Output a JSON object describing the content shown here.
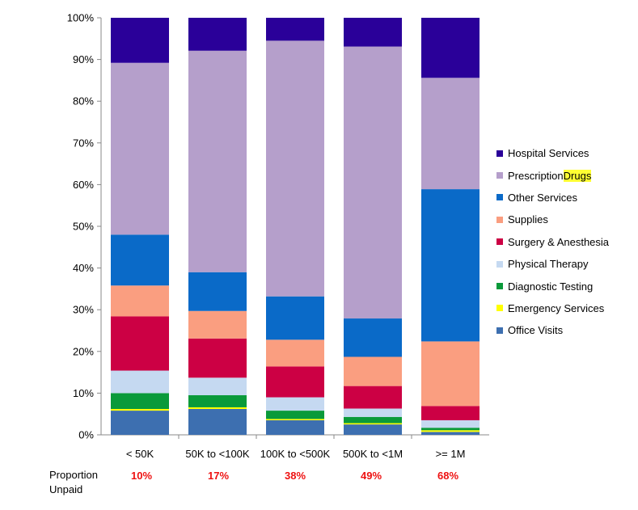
{
  "chart_data": {
    "type": "bar",
    "stacked": "percent",
    "categories": [
      "< 50K",
      "50K to <100K",
      "100K to <500K",
      "500K to <1M",
      ">= 1M"
    ],
    "ylim": [
      0,
      100
    ],
    "yticks": [
      "0%",
      "10%",
      "20%",
      "30%",
      "40%",
      "50%",
      "60%",
      "70%",
      "80%",
      "90%",
      "100%"
    ],
    "legend_position": "right",
    "series": [
      {
        "name": "Office Visits",
        "color": "#3d6fb0",
        "values": [
          5.8,
          6.2,
          3.5,
          2.5,
          0.7
        ]
      },
      {
        "name": "Emergency Services",
        "color": "#ffff00",
        "values": [
          0.4,
          0.4,
          0.3,
          0.3,
          0.4
        ]
      },
      {
        "name": "Diagnostic Testing",
        "color": "#0a9a3a",
        "values": [
          3.8,
          2.9,
          2.0,
          1.5,
          0.6
        ]
      },
      {
        "name": "Physical Therapy",
        "color": "#c5d9f1",
        "values": [
          5.4,
          4.2,
          3.2,
          2.0,
          1.8
        ]
      },
      {
        "name": "Surgery & Anesthesia",
        "color": "#cc0044",
        "values": [
          13.0,
          9.4,
          7.4,
          5.4,
          3.4
        ]
      },
      {
        "name": "Supplies",
        "color": "#fa9e80",
        "values": [
          7.4,
          6.6,
          6.4,
          7.0,
          15.5
        ]
      },
      {
        "name": "Other Services",
        "color": "#0a6ac8",
        "values": [
          12.2,
          9.3,
          10.4,
          9.2,
          36.5
        ]
      },
      {
        "name": "Prescription Drugs",
        "color": "#b59fcb",
        "values": [
          41.2,
          53.1,
          61.3,
          65.2,
          26.7
        ]
      },
      {
        "name": "Hospital Services",
        "color": "#2a0099",
        "values": [
          10.8,
          7.9,
          5.5,
          6.9,
          14.4
        ]
      }
    ],
    "legend": [
      {
        "label": "Hospital Services",
        "highlight": ""
      },
      {
        "label": "Prescription ",
        "highlight": "Drugs"
      },
      {
        "label": "Other Services",
        "highlight": ""
      },
      {
        "label": "Supplies",
        "highlight": ""
      },
      {
        "label": "Surgery & Anesthesia",
        "highlight": ""
      },
      {
        "label": "Physical Therapy",
        "highlight": ""
      },
      {
        "label": "Diagnostic Testing",
        "highlight": ""
      },
      {
        "label": "Emergency Services",
        "highlight": ""
      },
      {
        "label": "Office Visits",
        "highlight": ""
      }
    ]
  },
  "proportion_unpaid": {
    "label_line1": "Proportion",
    "label_line2": "Unpaid",
    "values": [
      "10%",
      "17%",
      "38%",
      "49%",
      "68%"
    ]
  }
}
